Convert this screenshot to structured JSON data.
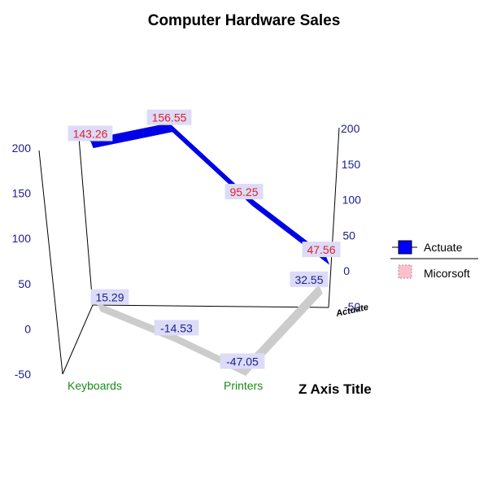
{
  "chart_data": {
    "type": "line",
    "style": "3d-ribbon",
    "title": "Computer Hardware Sales",
    "z_axis_title": "Z Axis Title",
    "series_axis_label": "Actuate",
    "categories": [
      "Keyboards",
      "",
      "Printers",
      ""
    ],
    "ylim": [
      -50,
      200
    ],
    "y_ticks": [
      "-50",
      "0",
      "50",
      "100",
      "150",
      "200"
    ],
    "series": [
      {
        "name": "Actuate",
        "values": [
          143.26,
          156.55,
          95.25,
          47.56
        ],
        "labels": [
          "143.26",
          "156.55",
          "95.25",
          "47.56"
        ],
        "color": "#0000e6",
        "label_color": "#e0202a"
      },
      {
        "name": "Micorsoft",
        "values": [
          15.29,
          -14.53,
          -47.05,
          32.55
        ],
        "labels": [
          "15.29",
          "-14.53",
          "-47.05",
          "32.55"
        ],
        "color": "#f5c8d8",
        "label_color": "#1c1c8c"
      }
    ],
    "legend": {
      "placement": "right",
      "entries": [
        "Actuate",
        "Micorsoft"
      ],
      "colors": [
        "#0000ff",
        "#ffc0cb"
      ]
    },
    "data_label_background": "#dcdcf8",
    "grid": false
  }
}
